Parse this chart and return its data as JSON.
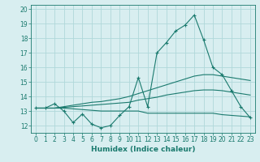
{
  "x": [
    0,
    1,
    2,
    3,
    4,
    5,
    6,
    7,
    8,
    9,
    10,
    11,
    12,
    13,
    14,
    15,
    16,
    17,
    18,
    19,
    20,
    21,
    22,
    23
  ],
  "main_line": [
    13.2,
    13.2,
    13.5,
    13.0,
    12.2,
    12.8,
    12.1,
    11.85,
    12.0,
    12.7,
    13.3,
    15.3,
    13.3,
    17.0,
    17.7,
    18.5,
    18.9,
    19.6,
    17.9,
    16.0,
    15.5,
    14.4,
    13.3,
    12.55
  ],
  "upper_line": [
    13.2,
    13.2,
    13.2,
    13.3,
    13.4,
    13.5,
    13.6,
    13.65,
    13.75,
    13.85,
    14.0,
    14.2,
    14.4,
    14.6,
    14.8,
    15.0,
    15.2,
    15.4,
    15.5,
    15.5,
    15.4,
    15.3,
    15.2,
    15.1
  ],
  "middle_line": [
    13.2,
    13.2,
    13.2,
    13.25,
    13.3,
    13.35,
    13.4,
    13.45,
    13.5,
    13.55,
    13.6,
    13.75,
    13.85,
    13.95,
    14.1,
    14.2,
    14.3,
    14.4,
    14.45,
    14.45,
    14.4,
    14.3,
    14.2,
    14.1
  ],
  "lower_line": [
    13.2,
    13.2,
    13.2,
    13.2,
    13.15,
    13.1,
    13.05,
    13.0,
    13.0,
    13.0,
    13.0,
    13.0,
    12.85,
    12.85,
    12.85,
    12.85,
    12.85,
    12.85,
    12.85,
    12.85,
    12.75,
    12.7,
    12.65,
    12.6
  ],
  "line_color": "#1a7a6e",
  "bg_color": "#d8eef0",
  "grid_color": "#b0d8da",
  "xlabel": "Humidex (Indice chaleur)",
  "ylim": [
    11.5,
    20.3
  ],
  "xlim": [
    -0.5,
    23.5
  ],
  "yticks": [
    12,
    13,
    14,
    15,
    16,
    17,
    18,
    19,
    20
  ],
  "xticks": [
    0,
    1,
    2,
    3,
    4,
    5,
    6,
    7,
    8,
    9,
    10,
    11,
    12,
    13,
    14,
    15,
    16,
    17,
    18,
    19,
    20,
    21,
    22,
    23
  ]
}
